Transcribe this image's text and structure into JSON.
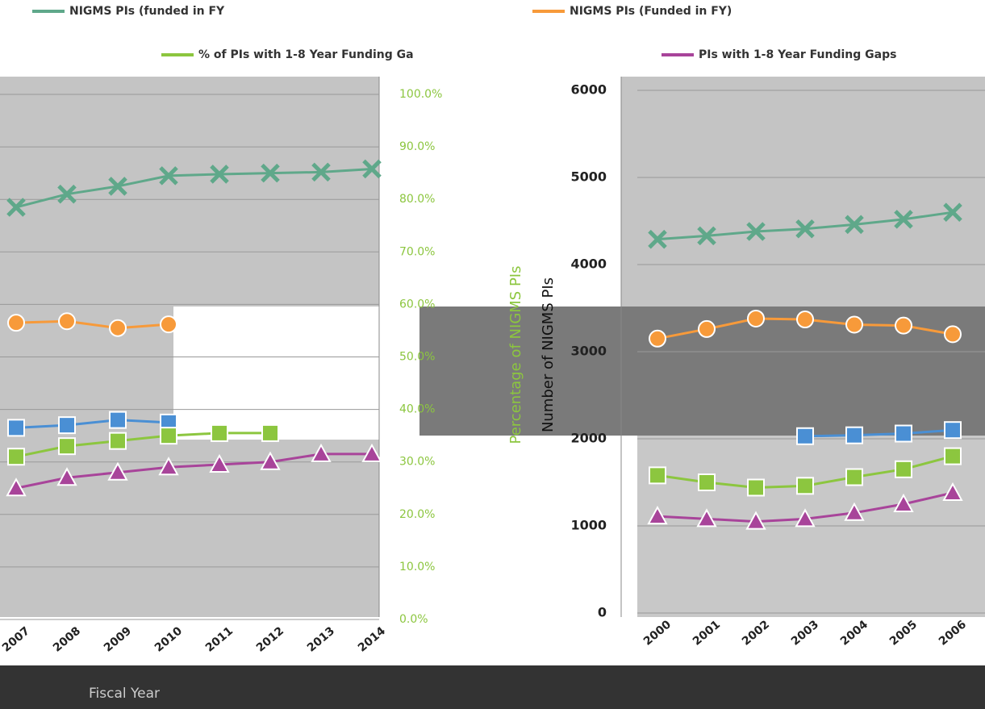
{
  "chart_data": [
    {
      "type": "line",
      "categories": [
        "2007",
        "2008",
        "2009",
        "2010",
        "2011",
        "2012",
        "2013",
        "2014"
      ],
      "ylim": [
        0,
        100
      ],
      "yticks": [
        {
          "value": 0,
          "label": "0.0%"
        },
        {
          "value": 10,
          "label": "10.0%"
        },
        {
          "value": 20,
          "label": "20.0%"
        },
        {
          "value": 30,
          "label": "30.0%"
        },
        {
          "value": 40,
          "label": "40.0%"
        },
        {
          "value": 50,
          "label": "50.0%"
        },
        {
          "value": 60,
          "label": "60.0%"
        },
        {
          "value": 70,
          "label": "70.0%"
        },
        {
          "value": 80,
          "label": "80.0%"
        },
        {
          "value": 90,
          "label": "90.0%"
        },
        {
          "value": 100,
          "label": "100.0%"
        }
      ],
      "ylabel": "Percentage of NIGMS PIs",
      "xlabel": "Fiscal Year",
      "grid": true,
      "series": [
        {
          "name": "NIGMS PIs (funded in FY",
          "color": "#5fa88a",
          "marker": "x",
          "values": [
            78.5,
            81,
            82.5,
            84.5,
            84.8,
            85,
            85.2,
            85.8
          ]
        },
        {
          "name": "NIGMS PIs (Funded in FY)",
          "color": "#f79a3a",
          "marker": "circle",
          "values": [
            56.5,
            56.8,
            55.5,
            56.2,
            null,
            null,
            null,
            null
          ]
        },
        {
          "color": "#4a8fd4",
          "marker": "square",
          "values": [
            36.5,
            37,
            38,
            37.5,
            null,
            null,
            null,
            null
          ]
        },
        {
          "name": "% of PIs with 1-8 Year Funding Ga",
          "color": "#8cc63f",
          "marker": "square",
          "values": [
            31,
            33,
            34,
            35,
            35.5,
            35.5,
            null,
            null
          ]
        },
        {
          "name": "PIs with 1-8 Year Funding Gaps",
          "color": "#a8449a",
          "marker": "triangle",
          "values": [
            25,
            27,
            28,
            29,
            29.5,
            30,
            31.5,
            31.5
          ]
        }
      ]
    },
    {
      "type": "line",
      "categories": [
        "2000",
        "2001",
        "2002",
        "2003",
        "2004",
        "2005",
        "2006"
      ],
      "ylim": [
        0,
        6000
      ],
      "yticks": [
        0,
        1000,
        2000,
        3000,
        4000,
        5000,
        6000
      ],
      "ylabel": "Number of NIGMS PIs",
      "grid": true,
      "series": [
        {
          "color": "#5fa88a",
          "marker": "x",
          "values": [
            4290,
            4330,
            4380,
            4410,
            4460,
            4520,
            4600
          ]
        },
        {
          "color": "#f79a3a",
          "marker": "circle",
          "values": [
            3150,
            3260,
            3380,
            3370,
            3310,
            3300,
            3200
          ]
        },
        {
          "color": "#4a8fd4",
          "marker": "square",
          "values": [
            null,
            null,
            null,
            2030,
            2040,
            2060,
            2100
          ]
        },
        {
          "color": "#8cc63f",
          "marker": "square",
          "values": [
            1580,
            1500,
            1440,
            1460,
            1560,
            1650,
            1800
          ]
        },
        {
          "color": "#a8449a",
          "marker": "triangle",
          "values": [
            1110,
            1080,
            1050,
            1080,
            1150,
            1250,
            1380
          ]
        }
      ]
    }
  ]
}
